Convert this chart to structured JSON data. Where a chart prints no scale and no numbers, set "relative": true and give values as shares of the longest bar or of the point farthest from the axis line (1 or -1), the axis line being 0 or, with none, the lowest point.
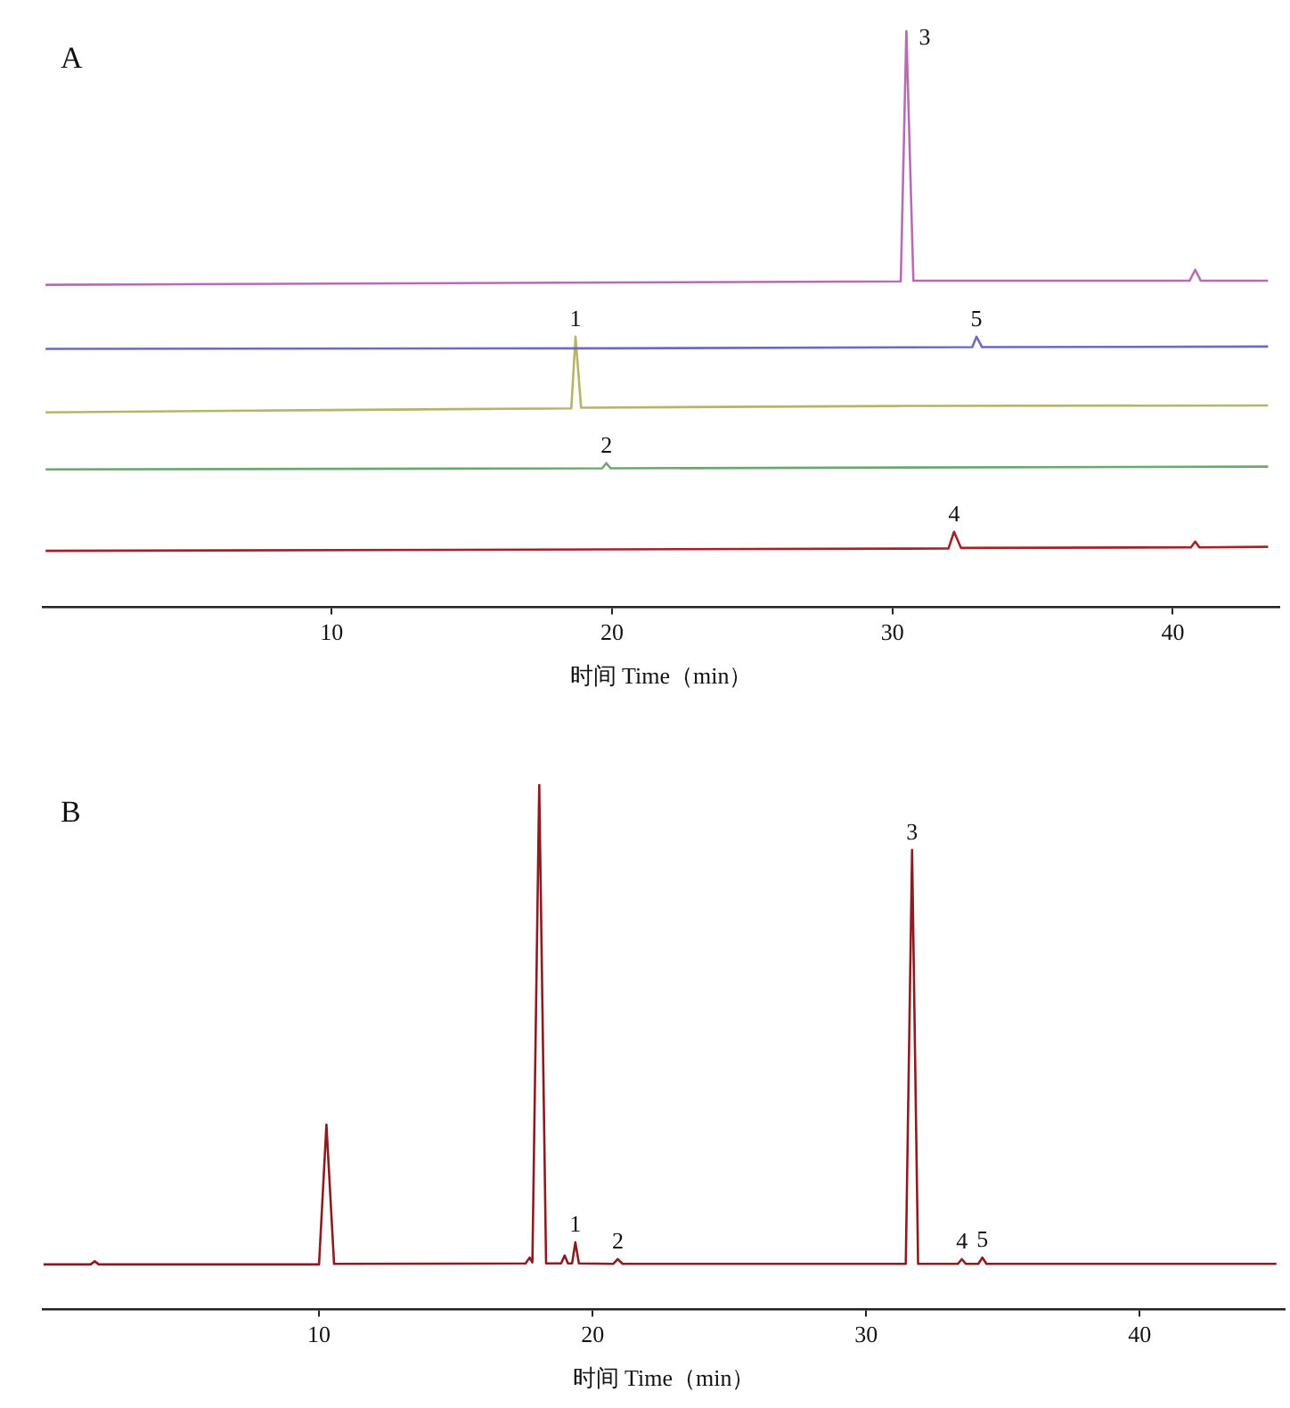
{
  "chart_data": [
    {
      "type": "line",
      "title": "A",
      "xlabel": "时间 Time（min）",
      "relative": true,
      "tick_labels": "x",
      "xlim": [
        -0.3,
        43.8
      ],
      "xticks": [
        10,
        20,
        30,
        40
      ],
      "series": [
        {
          "color": "#b66db4",
          "x": [
            -0.2,
            10,
            20,
            30.3,
            30.5,
            30.75,
            40.6,
            40.8,
            41.0,
            43.4
          ],
          "values": [
            0.559,
            0.561,
            0.563,
            0.565,
            1.0,
            0.566,
            0.566,
            0.585,
            0.566,
            0.566
          ]
        },
        {
          "color": "#6b6bc2",
          "x": [
            -0.2,
            20,
            32.85,
            33.0,
            33.2,
            43.4
          ],
          "values": [
            0.448,
            0.449,
            0.451,
            0.469,
            0.451,
            0.452
          ]
        },
        {
          "color": "#b5b56a",
          "x": [
            -0.2,
            10,
            18.55,
            18.7,
            18.9,
            30,
            43.4
          ],
          "values": [
            0.338,
            0.342,
            0.345,
            0.469,
            0.346,
            0.349,
            0.35
          ]
        },
        {
          "color": "#6aa86e",
          "x": [
            -0.2,
            19.65,
            19.8,
            19.95,
            43.4
          ],
          "values": [
            0.239,
            0.241,
            0.25,
            0.241,
            0.244
          ]
        },
        {
          "color": "#a3222a",
          "x": [
            -0.2,
            32.0,
            32.2,
            32.45,
            40.65,
            40.8,
            40.95,
            43.4
          ],
          "values": [
            0.098,
            0.102,
            0.131,
            0.103,
            0.104,
            0.114,
            0.104,
            0.105
          ]
        }
      ],
      "annotations": [
        {
          "text": "3",
          "x": 30.5,
          "y": 1.0
        },
        {
          "text": "5",
          "x": 33.0,
          "y": 0.469
        },
        {
          "text": "1",
          "x": 18.7,
          "y": 0.469
        },
        {
          "text": "2",
          "x": 19.8,
          "y": 0.25
        },
        {
          "text": "4",
          "x": 32.2,
          "y": 0.131
        }
      ]
    },
    {
      "type": "line",
      "title": "B",
      "xlabel": "时间 Time（min）",
      "relative": true,
      "tick_labels": "x",
      "xlim": [
        -0.1,
        45.3
      ],
      "xticks": [
        10,
        20,
        30,
        40
      ],
      "series": [
        {
          "color": "#8b1c22",
          "x": [
            -0.07,
            1.65,
            1.8,
            1.95,
            10.0,
            10.27,
            10.55,
            17.55,
            17.7,
            17.8,
            18.05,
            18.3,
            18.85,
            18.98,
            19.1,
            19.25,
            19.37,
            19.5,
            20.75,
            20.92,
            21.1,
            31.45,
            31.68,
            31.9,
            33.35,
            33.5,
            33.65,
            34.1,
            34.25,
            34.4,
            45.0
          ],
          "values": [
            0.086,
            0.086,
            0.092,
            0.086,
            0.086,
            0.352,
            0.087,
            0.088,
            0.099,
            0.09,
            1.0,
            0.088,
            0.088,
            0.103,
            0.088,
            0.088,
            0.128,
            0.088,
            0.087,
            0.096,
            0.087,
            0.087,
            0.875,
            0.087,
            0.087,
            0.096,
            0.087,
            0.087,
            0.099,
            0.087,
            0.087
          ]
        }
      ],
      "annotations": [
        {
          "text": "1",
          "x": 19.37,
          "y": 0.128
        },
        {
          "text": "2",
          "x": 20.92,
          "y": 0.096
        },
        {
          "text": "3",
          "x": 31.68,
          "y": 0.875
        },
        {
          "text": "4",
          "x": 33.5,
          "y": 0.096
        },
        {
          "text": "5",
          "x": 34.25,
          "y": 0.099
        }
      ]
    }
  ]
}
